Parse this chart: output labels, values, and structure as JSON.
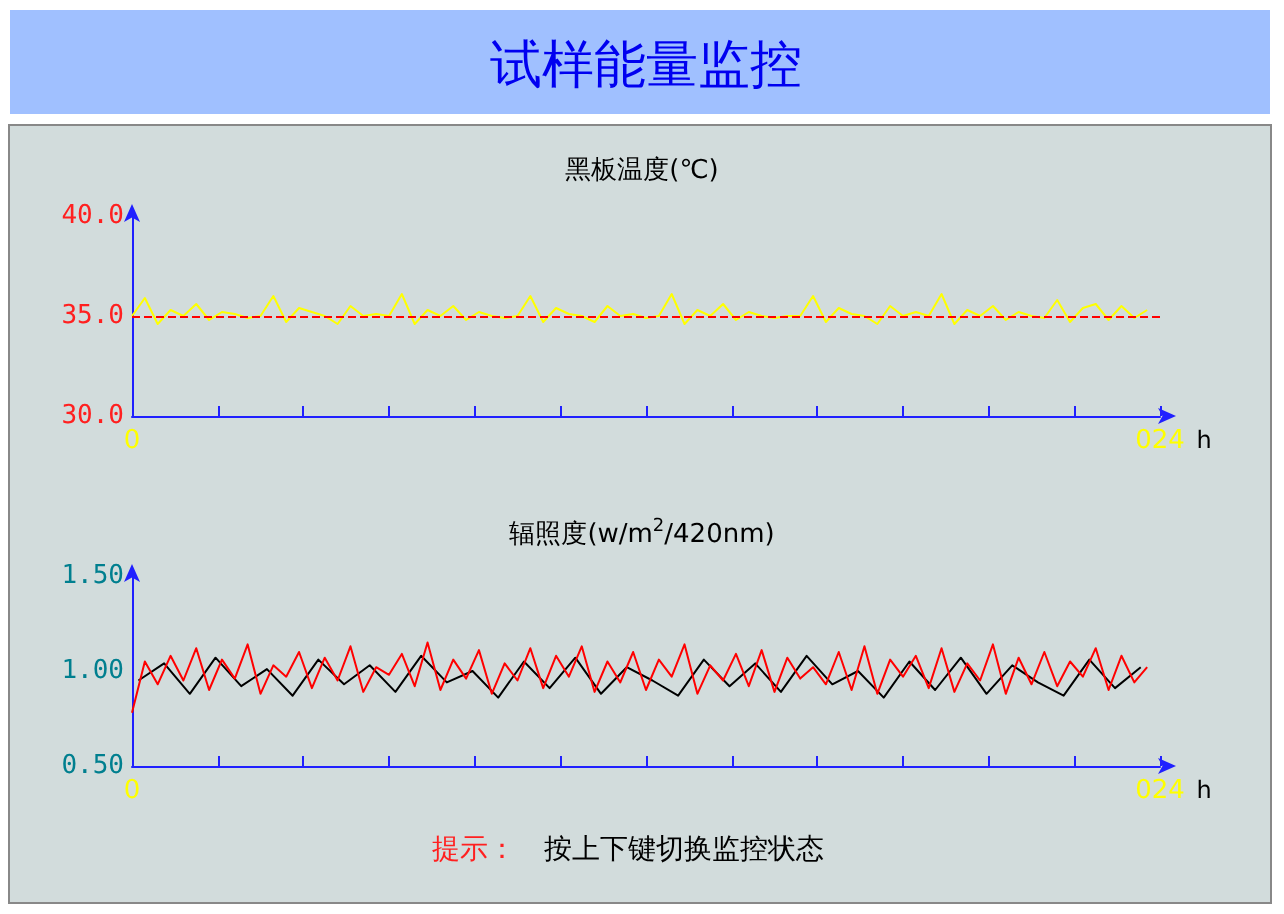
{
  "chart_data": [
    {
      "type": "line",
      "title": "黑板温度(℃)",
      "xlabel": "h",
      "annotations": [
        "试样能量监控"
      ],
      "x": [
        0,
        0.3,
        0.6,
        0.9,
        1.2,
        1.5,
        1.8,
        2.1,
        2.4,
        2.7,
        3,
        3.3,
        3.6,
        3.9,
        4.2,
        4.5,
        4.8,
        5.1,
        5.4,
        5.7,
        6,
        6.3,
        6.6,
        6.9,
        7.2,
        7.5,
        7.8,
        8.1,
        8.4,
        8.7,
        9,
        9.3,
        9.6,
        9.9,
        10.2,
        10.5,
        10.8,
        11.1,
        11.4,
        11.7,
        12,
        12.3,
        12.6,
        12.9,
        13.2,
        13.5,
        13.8,
        14.1,
        14.4,
        14.7,
        15,
        15.3,
        15.6,
        15.9,
        16.2,
        16.5,
        16.8,
        17.1,
        17.4,
        17.7,
        18,
        18.3,
        18.6,
        18.9,
        19.2,
        19.5,
        19.8,
        20.1,
        20.4,
        20.7,
        21,
        21.3,
        21.6,
        21.9,
        22.2,
        22.5,
        22.8,
        23.1,
        23.4,
        23.7
      ],
      "series": [
        {
          "color": "#ffff00",
          "values": [
            35.0,
            35.9,
            34.6,
            35.3,
            35.0,
            35.6,
            34.8,
            35.2,
            35.1,
            34.9,
            35.0,
            36.0,
            34.7,
            35.4,
            35.2,
            35.0,
            34.6,
            35.5,
            35.0,
            35.1,
            35.0,
            36.1,
            34.6,
            35.3,
            35.0,
            35.5,
            34.8,
            35.2,
            35.0,
            34.9,
            35.0,
            36.0,
            34.7,
            35.4,
            35.1,
            35.0,
            34.7,
            35.5,
            35.0,
            35.1,
            34.9,
            35.0,
            36.1,
            34.6,
            35.3,
            35.0,
            35.6,
            34.8,
            35.2,
            35.0,
            34.9,
            35.0,
            35.0,
            36.0,
            34.7,
            35.4,
            35.1,
            35.0,
            34.6,
            35.5,
            35.0,
            35.2,
            35.0,
            36.1,
            34.6,
            35.3,
            35.0,
            35.5,
            34.8,
            35.2,
            35.0,
            34.9,
            35.8,
            34.7,
            35.4,
            35.6,
            34.8,
            35.5,
            34.9,
            35.3
          ]
        }
      ],
      "ref_lines": [
        {
          "axis": "y",
          "value": 35,
          "color": "#ff0000",
          "line_style": "dashed"
        }
      ],
      "xlim": [
        0,
        24
      ],
      "xticks": [
        {
          "value": 0,
          "label": "0"
        },
        {
          "value": 2,
          "label": null
        },
        {
          "value": 4,
          "label": null
        },
        {
          "value": 6,
          "label": null
        },
        {
          "value": 8,
          "label": null
        },
        {
          "value": 10,
          "label": null
        },
        {
          "value": 12,
          "label": null
        },
        {
          "value": 14,
          "label": null
        },
        {
          "value": 16,
          "label": null
        },
        {
          "value": 18,
          "label": null
        },
        {
          "value": 20,
          "label": null
        },
        {
          "value": 22,
          "label": null
        },
        {
          "value": 24,
          "label": "024"
        }
      ],
      "ylim": [
        30,
        40
      ],
      "yticks": [
        {
          "value": 30,
          "label": "30.0"
        },
        {
          "value": 35,
          "label": "35.0"
        },
        {
          "value": 40,
          "label": "40.0"
        }
      ],
      "grid": false,
      "marker": "none",
      "line_style": "solid"
    },
    {
      "type": "line",
      "title": "辐照度(w/m$^{2}$/420nm)",
      "xlabel": "h",
      "annotations": [
        "提示：",
        "按上下键切换监控状态"
      ],
      "series": [
        {
          "color": "#000000",
          "x": [
            0.15,
            0.75,
            1.35,
            1.95,
            2.55,
            3.15,
            3.75,
            4.35,
            4.95,
            5.55,
            6.15,
            6.75,
            7.35,
            7.95,
            8.55,
            9.15,
            9.75,
            10.35,
            10.95,
            11.55,
            12.15,
            12.75,
            13.35,
            13.95,
            14.55,
            15.15,
            15.75,
            16.35,
            16.95,
            17.55,
            18.15,
            18.75,
            19.35,
            19.95,
            20.55,
            21.15,
            21.75,
            22.35,
            22.95,
            23.55
          ],
          "values": [
            0.95,
            1.04,
            0.88,
            1.07,
            0.92,
            1.01,
            0.87,
            1.06,
            0.93,
            1.03,
            0.89,
            1.08,
            0.94,
            1.0,
            0.86,
            1.05,
            0.91,
            1.07,
            0.88,
            1.02,
            0.95,
            0.87,
            1.06,
            0.92,
            1.04,
            0.89,
            1.08,
            0.93,
            1.0,
            0.86,
            1.05,
            0.9,
            1.07,
            0.88,
            1.03,
            0.94,
            0.87,
            1.06,
            0.91,
            1.02
          ]
        },
        {
          "color": "#ff0000",
          "x": [
            0,
            0.3,
            0.6,
            0.9,
            1.2,
            1.5,
            1.8,
            2.1,
            2.4,
            2.7,
            3,
            3.3,
            3.6,
            3.9,
            4.2,
            4.5,
            4.8,
            5.1,
            5.4,
            5.7,
            6,
            6.3,
            6.6,
            6.9,
            7.2,
            7.5,
            7.8,
            8.1,
            8.4,
            8.7,
            9,
            9.3,
            9.6,
            9.9,
            10.2,
            10.5,
            10.8,
            11.1,
            11.4,
            11.7,
            12,
            12.3,
            12.6,
            12.9,
            13.2,
            13.5,
            13.8,
            14.1,
            14.4,
            14.7,
            15,
            15.3,
            15.6,
            15.9,
            16.2,
            16.5,
            16.8,
            17.1,
            17.4,
            17.7,
            18,
            18.3,
            18.6,
            18.9,
            19.2,
            19.5,
            19.8,
            20.1,
            20.4,
            20.7,
            21,
            21.3,
            21.6,
            21.9,
            22.2,
            22.5,
            22.8,
            23.1,
            23.4,
            23.7
          ],
          "values": [
            0.78,
            1.05,
            0.93,
            1.08,
            0.95,
            1.12,
            0.9,
            1.06,
            0.96,
            1.14,
            0.88,
            1.03,
            0.97,
            1.1,
            0.91,
            1.07,
            0.95,
            1.13,
            0.89,
            1.02,
            0.98,
            1.09,
            0.92,
            1.15,
            0.9,
            1.06,
            0.96,
            1.11,
            0.88,
            1.04,
            0.95,
            1.12,
            0.91,
            1.08,
            0.97,
            1.13,
            0.89,
            1.05,
            0.94,
            1.1,
            0.9,
            1.06,
            0.97,
            1.14,
            0.88,
            1.03,
            0.95,
            1.09,
            0.92,
            1.11,
            0.89,
            1.07,
            0.96,
            1.02,
            0.93,
            1.1,
            0.9,
            1.13,
            0.88,
            1.06,
            0.97,
            1.08,
            0.91,
            1.12,
            0.89,
            1.04,
            0.95,
            1.14,
            0.88,
            1.07,
            0.93,
            1.1,
            0.92,
            1.05,
            0.97,
            1.12,
            0.9,
            1.08,
            0.94,
            1.02
          ]
        }
      ],
      "xlim": [
        0,
        24
      ],
      "xticks": [
        {
          "value": 0,
          "label": "0"
        },
        {
          "value": 2,
          "label": null
        },
        {
          "value": 4,
          "label": null
        },
        {
          "value": 6,
          "label": null
        },
        {
          "value": 8,
          "label": null
        },
        {
          "value": 10,
          "label": null
        },
        {
          "value": 12,
          "label": null
        },
        {
          "value": 14,
          "label": null
        },
        {
          "value": 16,
          "label": null
        },
        {
          "value": 18,
          "label": null
        },
        {
          "value": 20,
          "label": null
        },
        {
          "value": 22,
          "label": null
        },
        {
          "value": 24,
          "label": "024"
        }
      ],
      "ylim": [
        0.5,
        1.5
      ],
      "yticks": [
        {
          "value": 0.5,
          "label": "0.50"
        },
        {
          "value": 1,
          "label": "1.00"
        },
        {
          "value": 1.5,
          "label": "1.50"
        }
      ],
      "grid": false,
      "marker": "none",
      "line_style": "solid"
    }
  ]
}
